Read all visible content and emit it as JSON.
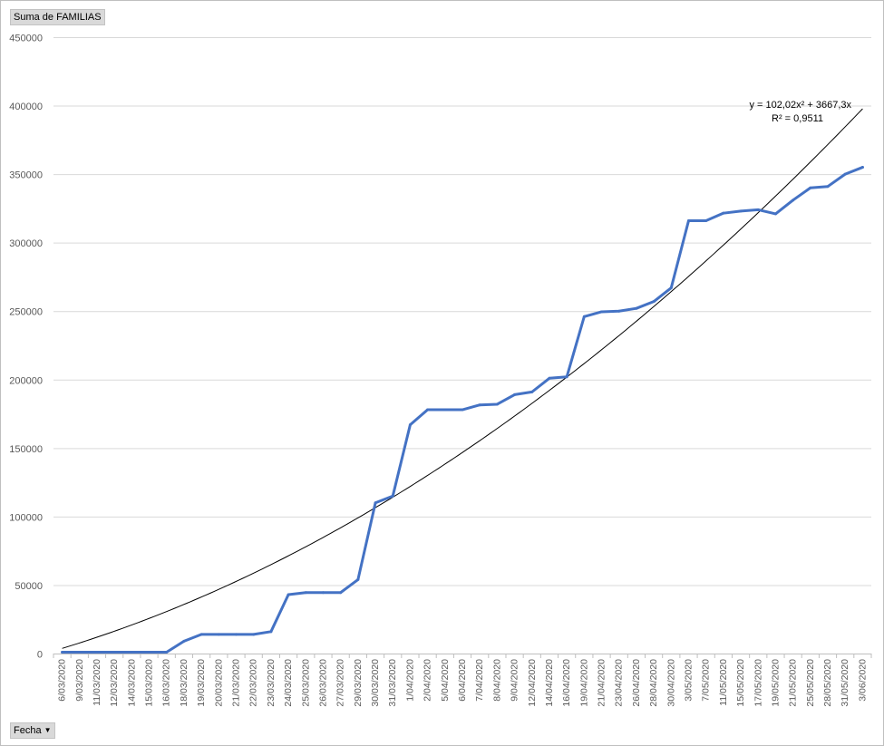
{
  "value_field": {
    "label": "Suma de FAMILIAS"
  },
  "axis_field": {
    "label": "Fecha",
    "arrow": "▼"
  },
  "colors": {
    "series": "#4472C4",
    "trendline": "#000000",
    "gridline": "#d9d9d9",
    "axis": "#bfbfbf"
  },
  "chart_data": {
    "type": "line",
    "title": "",
    "xlabel": "",
    "ylabel": "",
    "ylim": [
      0,
      450000
    ],
    "yticks": [
      0,
      50000,
      100000,
      150000,
      200000,
      250000,
      300000,
      350000,
      400000,
      450000
    ],
    "ytick_labels": [
      "0",
      "50000",
      "100000",
      "150000",
      "200000",
      "250000",
      "300000",
      "350000",
      "400000",
      "450000"
    ],
    "grid": true,
    "legend": "none",
    "categories": [
      "6/03/2020",
      "9/03/2020",
      "11/03/2020",
      "12/03/2020",
      "14/03/2020",
      "15/03/2020",
      "16/03/2020",
      "18/03/2020",
      "19/03/2020",
      "20/03/2020",
      "21/03/2020",
      "22/03/2020",
      "23/03/2020",
      "24/03/2020",
      "25/03/2020",
      "26/03/2020",
      "27/03/2020",
      "29/03/2020",
      "30/03/2020",
      "31/03/2020",
      "1/04/2020",
      "2/04/2020",
      "5/04/2020",
      "6/04/2020",
      "7/04/2020",
      "8/04/2020",
      "9/04/2020",
      "12/04/2020",
      "14/04/2020",
      "16/04/2020",
      "19/04/2020",
      "21/04/2020",
      "23/04/2020",
      "26/04/2020",
      "28/04/2020",
      "30/04/2020",
      "3/05/2020",
      "7/05/2020",
      "11/05/2020",
      "15/05/2020",
      "17/05/2020",
      "19/05/2020",
      "21/05/2020",
      "25/05/2020",
      "28/05/2020",
      "31/05/2020",
      "3/06/2020"
    ],
    "series": [
      {
        "values": [
          1000,
          1000,
          1000,
          1000,
          1000,
          1000,
          1000,
          9000,
          14000,
          14000,
          14000,
          14000,
          16000,
          43000,
          44500,
          44500,
          44500,
          54000,
          110000,
          115000,
          167000,
          178000,
          178000,
          178000,
          181500,
          182000,
          189000,
          191000,
          201000,
          202000,
          246000,
          249500,
          250000,
          252000,
          257000,
          267000,
          316000,
          316000,
          321500,
          323000,
          324000,
          321000,
          331000,
          340000,
          341000,
          350000,
          355000
        ]
      }
    ],
    "trendline": {
      "type": "polynomial",
      "equation": "y = 102,02x² + 3667,3x",
      "r_squared": "R² = 0,9511",
      "a": 102.02,
      "b": 3667.3
    }
  }
}
